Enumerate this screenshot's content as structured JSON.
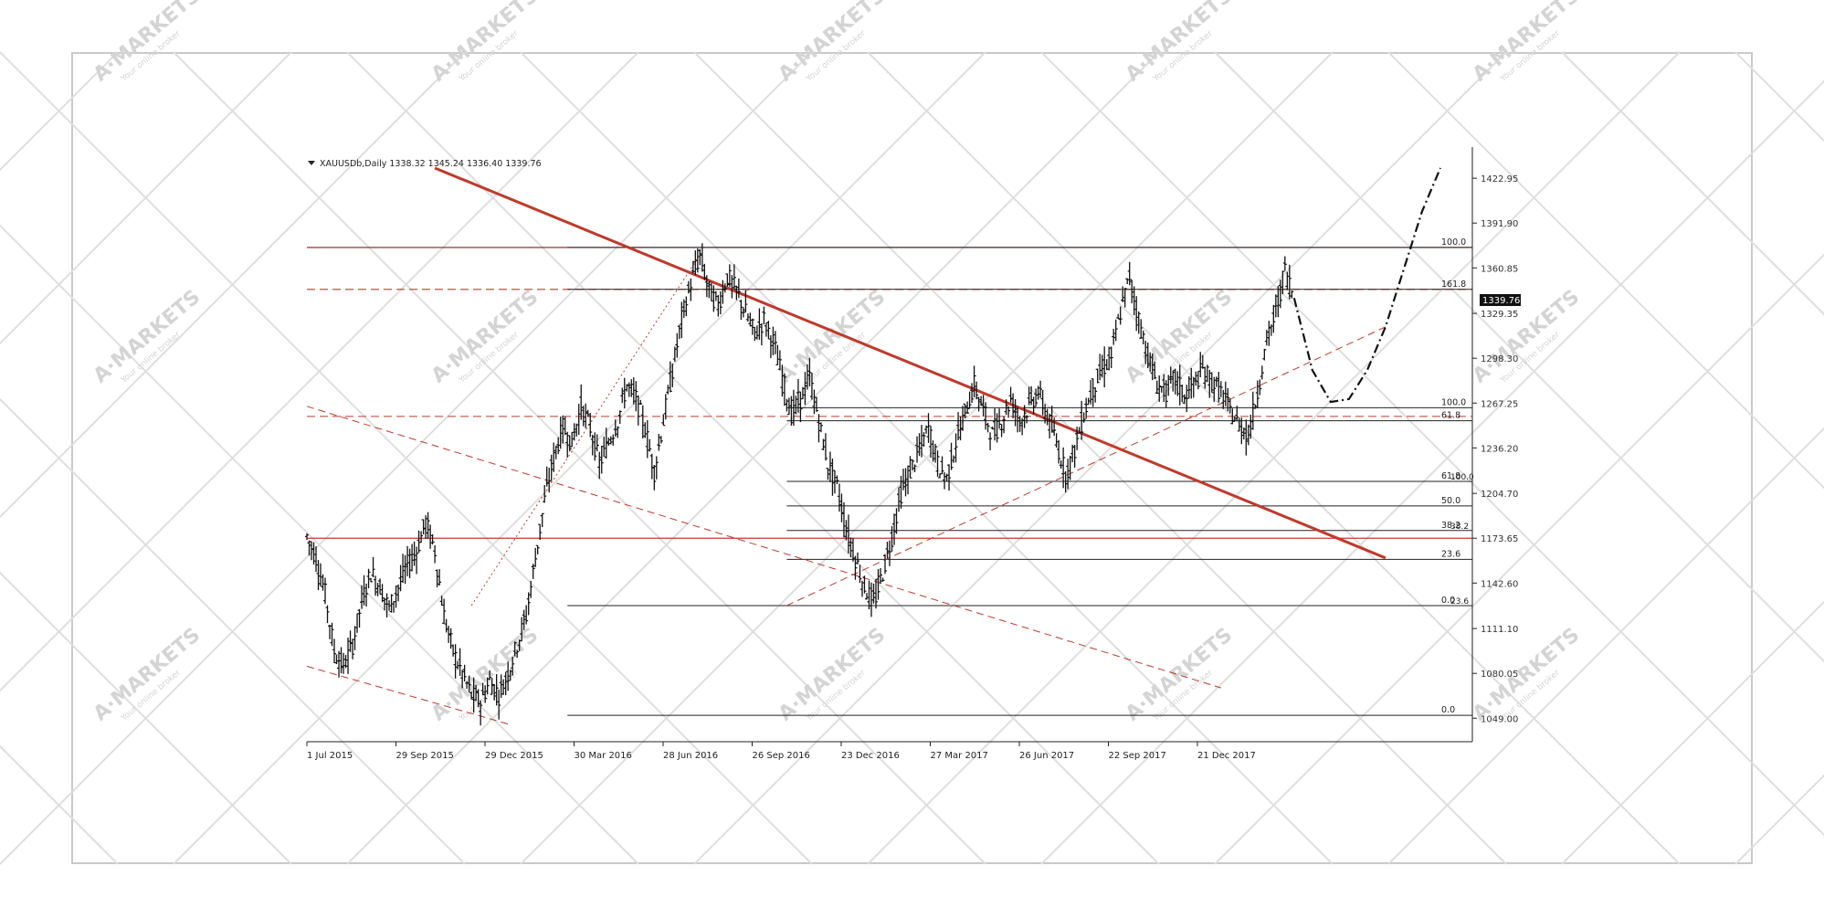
{
  "chart_data": {
    "type": "candlestick",
    "symbol_header": "XAUUSDb,Daily  1338.32 1345.24 1336.40 1339.76",
    "current_price_label": "1339.76",
    "x_dates": [
      "1 Jul 2015",
      "29 Sep 2015",
      "29 Dec 2015",
      "30 Mar 2016",
      "28 Jun 2016",
      "26 Sep 2016",
      "23 Dec 2016",
      "27 Mar 2017",
      "26 Jun 2017",
      "22 Sep 2017",
      "21 Dec 2017"
    ],
    "y_ticks": [
      "1422.95",
      "1391.90",
      "1360.85",
      "1329.35",
      "1298.30",
      "1267.25",
      "1236.20",
      "1204.70",
      "1173.65",
      "1142.60",
      "1111.10",
      "1080.05",
      "1049.00"
    ],
    "ylim": [
      1049.0,
      1422.95
    ],
    "price_path": [
      [
        0,
        1175
      ],
      [
        2,
        1160
      ],
      [
        4,
        1135
      ],
      [
        6,
        1095
      ],
      [
        8,
        1085
      ],
      [
        10,
        1100
      ],
      [
        12,
        1130
      ],
      [
        14,
        1150
      ],
      [
        16,
        1140
      ],
      [
        18,
        1125
      ],
      [
        20,
        1140
      ],
      [
        22,
        1155
      ],
      [
        24,
        1165
      ],
      [
        26,
        1185
      ],
      [
        28,
        1165
      ],
      [
        30,
        1120
      ],
      [
        32,
        1095
      ],
      [
        34,
        1080
      ],
      [
        36,
        1065
      ],
      [
        38,
        1060
      ],
      [
        40,
        1075
      ],
      [
        42,
        1065
      ],
      [
        44,
        1080
      ],
      [
        46,
        1100
      ],
      [
        48,
        1120
      ],
      [
        50,
        1160
      ],
      [
        52,
        1200
      ],
      [
        54,
        1230
      ],
      [
        56,
        1250
      ],
      [
        58,
        1240
      ],
      [
        60,
        1265
      ],
      [
        62,
        1250
      ],
      [
        64,
        1225
      ],
      [
        66,
        1240
      ],
      [
        68,
        1255
      ],
      [
        70,
        1280
      ],
      [
        72,
        1270
      ],
      [
        74,
        1250
      ],
      [
        76,
        1220
      ],
      [
        78,
        1255
      ],
      [
        80,
        1290
      ],
      [
        82,
        1325
      ],
      [
        84,
        1350
      ],
      [
        86,
        1370
      ],
      [
        88,
        1345
      ],
      [
        90,
        1335
      ],
      [
        92,
        1355
      ],
      [
        94,
        1345
      ],
      [
        96,
        1330
      ],
      [
        98,
        1315
      ],
      [
        100,
        1325
      ],
      [
        102,
        1310
      ],
      [
        104,
        1285
      ],
      [
        106,
        1260
      ],
      [
        108,
        1270
      ],
      [
        110,
        1285
      ],
      [
        112,
        1255
      ],
      [
        114,
        1225
      ],
      [
        116,
        1210
      ],
      [
        118,
        1180
      ],
      [
        120,
        1160
      ],
      [
        122,
        1140
      ],
      [
        124,
        1128
      ],
      [
        126,
        1150
      ],
      [
        128,
        1175
      ],
      [
        130,
        1205
      ],
      [
        132,
        1220
      ],
      [
        134,
        1235
      ],
      [
        136,
        1250
      ],
      [
        138,
        1225
      ],
      [
        140,
        1215
      ],
      [
        142,
        1240
      ],
      [
        144,
        1260
      ],
      [
        146,
        1280
      ],
      [
        148,
        1262
      ],
      [
        150,
        1245
      ],
      [
        152,
        1255
      ],
      [
        154,
        1270
      ],
      [
        156,
        1255
      ],
      [
        158,
        1265
      ],
      [
        160,
        1275
      ],
      [
        162,
        1258
      ],
      [
        164,
        1240
      ],
      [
        166,
        1218
      ],
      [
        168,
        1235
      ],
      [
        170,
        1260
      ],
      [
        172,
        1278
      ],
      [
        174,
        1290
      ],
      [
        176,
        1300
      ],
      [
        178,
        1330
      ],
      [
        180,
        1355
      ],
      [
        182,
        1325
      ],
      [
        184,
        1300
      ],
      [
        186,
        1280
      ],
      [
        188,
        1275
      ],
      [
        190,
        1285
      ],
      [
        192,
        1272
      ],
      [
        194,
        1280
      ],
      [
        196,
        1290
      ],
      [
        198,
        1282
      ],
      [
        200,
        1275
      ],
      [
        202,
        1262
      ],
      [
        204,
        1252
      ],
      [
        206,
        1245
      ],
      [
        208,
        1275
      ],
      [
        210,
        1310
      ],
      [
        212,
        1330
      ],
      [
        214,
        1360
      ],
      [
        216,
        1340
      ]
    ],
    "horizontal_levels": [
      {
        "price": 1375,
        "style": "solid",
        "color": "#8b1a1a"
      },
      {
        "price": 1346,
        "style": "dashed",
        "color": "#c0392b"
      },
      {
        "price": 1258,
        "style": "dashed",
        "color": "#c0392b"
      },
      {
        "price": 1173.65,
        "style": "solid",
        "color": "#c0392b"
      }
    ],
    "fib_levels": [
      {
        "label": "100.0",
        "price": 1375
      },
      {
        "label": "161.8",
        "price": 1346
      },
      {
        "label": "100.0",
        "price": 1264
      },
      {
        "label": "61.8",
        "price": 1255
      },
      {
        "label": "61.8",
        "price": 1213
      },
      {
        "label": "50.0",
        "price": 1196
      },
      {
        "label": "38.2",
        "price": 1179
      },
      {
        "label": "23.6",
        "price": 1159
      },
      {
        "label": "0.0",
        "price": 1127
      },
      {
        "label": "0.0",
        "price": 1051
      }
    ],
    "fib_side_labels": [
      "100.0",
      "38.2",
      "23.6"
    ],
    "trendlines": [
      {
        "name": "main-downtrend",
        "from": [
          28,
          1430
        ],
        "to": [
          236,
          1160
        ],
        "color": "#c0392b",
        "width": 3
      },
      {
        "name": "channel-upper",
        "from": [
          0,
          1265
        ],
        "to": [
          200,
          1070
        ],
        "color": "#c0392b",
        "dashed": true
      },
      {
        "name": "channel-lower",
        "from": [
          0,
          1085
        ],
        "to": [
          44,
          1045
        ],
        "color": "#c0392b",
        "dashed": true
      },
      {
        "name": "uptrend-support",
        "from": [
          105,
          1127
        ],
        "to": [
          236,
          1320
        ],
        "color": "#c0392b",
        "dashed": true
      },
      {
        "name": "dotted-rise",
        "from": [
          36,
          1127
        ],
        "to": [
          86,
          1370
        ],
        "color": "#c0392b",
        "dotted": true
      }
    ],
    "projection_path": [
      [
        216,
        1340
      ],
      [
        220,
        1290
      ],
      [
        224,
        1268
      ],
      [
        228,
        1270
      ],
      [
        232,
        1290
      ],
      [
        236,
        1320
      ],
      [
        240,
        1360
      ],
      [
        244,
        1400
      ],
      [
        248,
        1430
      ]
    ],
    "watermark_text": "A·MARKETS",
    "watermark_subtext": "Your online broker"
  }
}
